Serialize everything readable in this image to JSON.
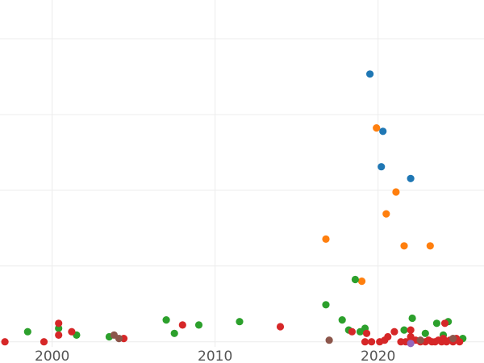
{
  "chart_data": {
    "type": "scatter",
    "title": "",
    "xlabel": "",
    "ylabel": "",
    "xlim": [
      1996.8,
      2026.5
    ],
    "ylim": [
      -0.3,
      20.3
    ],
    "grid": true,
    "x_ticks": [
      2000,
      2010,
      2020
    ],
    "x_tick_labels": [
      "2000",
      "2010",
      "2020"
    ],
    "y_gridlines": [
      0,
      4.5,
      9.0,
      13.5,
      18.0
    ],
    "colors": {
      "blue": "#1f77b4",
      "orange": "#ff7f0e",
      "green": "#2ca02c",
      "red": "#d62728",
      "purple": "#9467bd",
      "brown": "#8c564b"
    },
    "series": [
      {
        "color": "#1f77b4",
        "points": [
          [
            2019.5,
            15.9
          ],
          [
            2020.3,
            12.5
          ],
          [
            2020.2,
            10.4
          ],
          [
            2022.0,
            9.7
          ]
        ]
      },
      {
        "color": "#ff7f0e",
        "points": [
          [
            2019.9,
            12.7
          ],
          [
            2021.1,
            8.9
          ],
          [
            2020.5,
            7.6
          ],
          [
            2016.8,
            6.1
          ],
          [
            2021.6,
            5.7
          ],
          [
            2023.2,
            5.7
          ],
          [
            2019.0,
            3.6
          ]
        ]
      },
      {
        "color": "#2ca02c",
        "points": [
          [
            1998.5,
            0.6
          ],
          [
            2000.4,
            0.8
          ],
          [
            2001.5,
            0.4
          ],
          [
            2003.5,
            0.3
          ],
          [
            2007.0,
            1.3
          ],
          [
            2007.5,
            0.5
          ],
          [
            2009.0,
            1.0
          ],
          [
            2011.5,
            1.2
          ],
          [
            2016.8,
            2.2
          ],
          [
            2017.8,
            1.3
          ],
          [
            2018.2,
            0.7
          ],
          [
            2018.6,
            3.7
          ],
          [
            2018.9,
            0.6
          ],
          [
            2019.2,
            0.8
          ],
          [
            2021.6,
            0.7
          ],
          [
            2022.1,
            1.4
          ],
          [
            2022.9,
            0.5
          ],
          [
            2023.6,
            1.1
          ],
          [
            2024.0,
            0.4
          ],
          [
            2024.3,
            1.2
          ],
          [
            2025.2,
            0.2
          ]
        ]
      },
      {
        "color": "#d62728",
        "points": [
          [
            1997.1,
            0.0
          ],
          [
            1999.5,
            0.0
          ],
          [
            2000.4,
            1.1
          ],
          [
            2000.4,
            0.4
          ],
          [
            2001.2,
            0.6
          ],
          [
            2004.4,
            0.2
          ],
          [
            2008.0,
            1.0
          ],
          [
            2014.0,
            0.9
          ],
          [
            2018.4,
            0.6
          ],
          [
            2019.2,
            0.0
          ],
          [
            2019.3,
            0.5
          ],
          [
            2019.6,
            0.0
          ],
          [
            2020.1,
            0.0
          ],
          [
            2020.4,
            0.1
          ],
          [
            2020.6,
            0.3
          ],
          [
            2021.0,
            0.6
          ],
          [
            2021.4,
            0.0
          ],
          [
            2021.7,
            0.0
          ],
          [
            2022.0,
            0.3
          ],
          [
            2022.0,
            0.7
          ],
          [
            2022.3,
            0.1
          ],
          [
            2022.6,
            0.0
          ],
          [
            2022.9,
            0.0
          ],
          [
            2023.1,
            0.1
          ],
          [
            2023.3,
            0.0
          ],
          [
            2023.5,
            0.0
          ],
          [
            2023.7,
            0.1
          ],
          [
            2023.9,
            0.0
          ],
          [
            2024.0,
            0.2
          ],
          [
            2024.1,
            1.1
          ],
          [
            2024.2,
            0.0
          ],
          [
            2024.4,
            0.1
          ],
          [
            2024.6,
            0.0
          ],
          [
            2024.8,
            0.2
          ],
          [
            2025.0,
            0.0
          ]
        ]
      },
      {
        "color": "#9467bd",
        "points": [
          [
            2022.0,
            -0.1
          ]
        ]
      },
      {
        "color": "#8c564b",
        "points": [
          [
            2003.8,
            0.4
          ],
          [
            2004.1,
            0.2
          ],
          [
            2017.0,
            0.1
          ],
          [
            2022.6,
            0.1
          ],
          [
            2024.6,
            0.2
          ]
        ]
      }
    ]
  }
}
